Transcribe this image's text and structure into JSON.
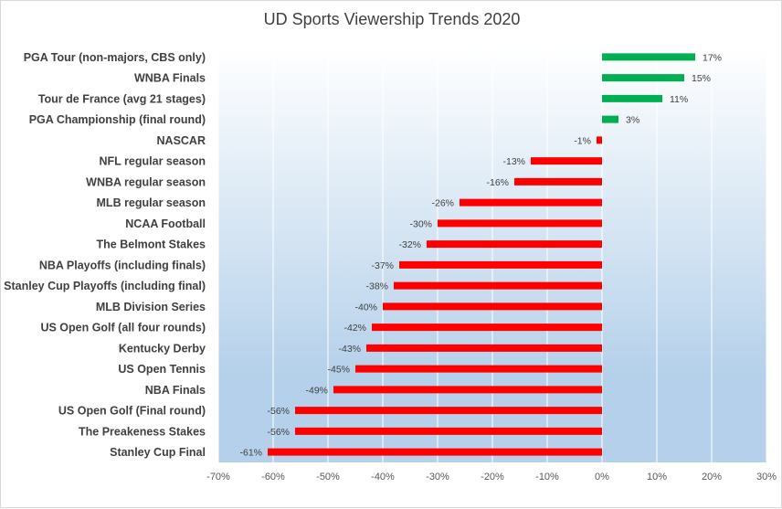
{
  "chart_data": {
    "type": "bar",
    "orientation": "horizontal",
    "title": "UD Sports Viewership Trends 2020",
    "xlabel": "",
    "ylabel": "",
    "xlim": [
      -0.7,
      0.3
    ],
    "x_ticks": [
      "-70%",
      "-60%",
      "-50%",
      "-40%",
      "-30%",
      "-20%",
      "-10%",
      "0%",
      "10%",
      "20%",
      "30%"
    ],
    "grid": true,
    "categories": [
      "PGA Tour (non-majors, CBS only)",
      "WNBA Finals",
      "Tour de France (avg 21 stages)",
      "PGA Championship (final round)",
      "NASCAR",
      "NFL regular season",
      "WNBA regular season",
      "MLB regular season",
      "NCAA Football",
      "The Belmont Stakes",
      "NBA Playoffs (including finals)",
      "Stanley Cup Playoffs (including final)",
      "MLB Division Series",
      "US Open Golf (all four rounds)",
      "Kentucky Derby",
      "US Open Tennis",
      "NBA Finals",
      "US Open Golf (Final round)",
      "The Preakeness Stakes",
      "Stanley Cup Final"
    ],
    "values": [
      0.17,
      0.15,
      0.11,
      0.03,
      -0.01,
      -0.13,
      -0.16,
      -0.26,
      -0.3,
      -0.32,
      -0.37,
      -0.38,
      -0.4,
      -0.42,
      -0.43,
      -0.45,
      -0.49,
      -0.56,
      -0.56,
      -0.61
    ],
    "data_labels": [
      "17%",
      "15%",
      "11%",
      "3%",
      "-1%",
      "-13%",
      "-16%",
      "-26%",
      "-30%",
      "-32%",
      "-37%",
      "-38%",
      "-40%",
      "-42%",
      "-43%",
      "-45%",
      "-49%",
      "-56%",
      "-56%",
      "-61%"
    ],
    "colors": {
      "positive": "#00b050",
      "negative": "#ff0000",
      "plot_bg_top": "#ffffff",
      "plot_bg_bottom": "#b4d0ea",
      "gridline": "#ffffff",
      "axis_line": "#d9d9d9"
    }
  }
}
